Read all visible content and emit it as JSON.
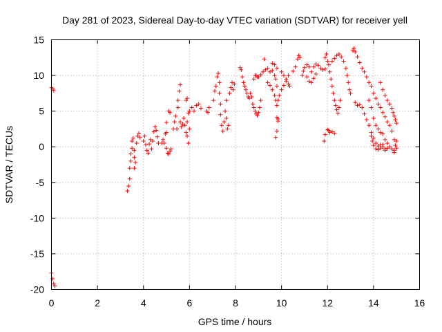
{
  "chart_data": {
    "type": "scatter",
    "title": "Day 281 of 2023, Sidereal Day-to-day VTEC variation (SDTVAR) for receiver yell",
    "xlabel": "GPS time / hours",
    "ylabel": "SDTVAR / TECUs",
    "xlim": [
      0,
      16
    ],
    "ylim": [
      -20,
      15
    ],
    "xticks": [
      0,
      2,
      4,
      6,
      8,
      10,
      12,
      14,
      16
    ],
    "yticks": [
      -20,
      -15,
      -10,
      -5,
      0,
      5,
      10,
      15
    ],
    "xtick_labels": [
      "0",
      "2",
      "4",
      "6",
      "8",
      "10",
      "12",
      "14",
      "16"
    ],
    "ytick_labels": [
      "-20",
      "-15",
      "-10",
      "-5",
      "0",
      "5",
      "10",
      "15"
    ],
    "grid": true,
    "marker": "+",
    "color": "#ff0000",
    "series": [
      {
        "name": "SDTVAR",
        "points": [
          [
            0.0,
            8.3
          ],
          [
            0.05,
            8.1
          ],
          [
            0.1,
            7.9
          ],
          [
            0.0,
            -17.7
          ],
          [
            0.05,
            -18.5
          ],
          [
            0.1,
            -19.2
          ],
          [
            0.15,
            -19.5
          ],
          [
            3.3,
            -6.2
          ],
          [
            3.35,
            -5.5
          ],
          [
            3.4,
            -4.5
          ],
          [
            3.4,
            -3.0
          ],
          [
            3.45,
            -2.0
          ],
          [
            3.45,
            -1.0
          ],
          [
            3.5,
            -0.2
          ],
          [
            3.5,
            0.8
          ],
          [
            3.55,
            1.2
          ],
          [
            3.6,
            -0.5
          ],
          [
            3.6,
            -1.5
          ],
          [
            3.6,
            -3.0
          ],
          [
            3.65,
            -2.2
          ],
          [
            3.7,
            0.5
          ],
          [
            3.75,
            1.5
          ],
          [
            3.8,
            1.9
          ],
          [
            3.85,
            1.3
          ],
          [
            4.0,
            0.8
          ],
          [
            4.05,
            1.5
          ],
          [
            4.1,
            0.3
          ],
          [
            4.15,
            -0.5
          ],
          [
            4.2,
            -0.9
          ],
          [
            4.25,
            0.4
          ],
          [
            4.3,
            1.0
          ],
          [
            4.35,
            -0.3
          ],
          [
            4.4,
            0.8
          ],
          [
            4.45,
            2.1
          ],
          [
            4.5,
            2.8
          ],
          [
            4.55,
            2.3
          ],
          [
            4.6,
            1.4
          ],
          [
            4.65,
            0.5
          ],
          [
            4.8,
            0.5
          ],
          [
            4.85,
            1.0
          ],
          [
            4.9,
            0.5
          ],
          [
            4.95,
            1.8
          ],
          [
            5.0,
            2.0
          ],
          [
            5.0,
            -0.2
          ],
          [
            5.05,
            -0.9
          ],
          [
            5.1,
            -1.0
          ],
          [
            5.15,
            -0.6
          ],
          [
            5.2,
            -0.3
          ],
          [
            5.0,
            3.4
          ],
          [
            5.1,
            5.0
          ],
          [
            5.15,
            4.8
          ],
          [
            5.3,
            2.5
          ],
          [
            5.35,
            3.5
          ],
          [
            5.4,
            4.3
          ],
          [
            5.45,
            2.5
          ],
          [
            5.5,
            5.5
          ],
          [
            5.5,
            6.5
          ],
          [
            5.55,
            7.8
          ],
          [
            5.6,
            8.7
          ],
          [
            5.6,
            3.5
          ],
          [
            5.65,
            2.8
          ],
          [
            5.7,
            3.2
          ],
          [
            5.75,
            4.0
          ],
          [
            5.8,
            3.0
          ],
          [
            5.85,
            2.0
          ],
          [
            5.9,
            3.5
          ],
          [
            5.95,
            4.7
          ],
          [
            6.0,
            2.5
          ],
          [
            5.95,
            0.5
          ],
          [
            5.9,
            1.5
          ],
          [
            5.85,
            6.5
          ],
          [
            5.9,
            6.8
          ],
          [
            6.0,
            5.0
          ],
          [
            6.1,
            5.5
          ],
          [
            6.2,
            5.0
          ],
          [
            6.3,
            5.8
          ],
          [
            6.4,
            6.0
          ],
          [
            6.5,
            5.4
          ],
          [
            6.75,
            5.0
          ],
          [
            6.8,
            4.8
          ],
          [
            6.85,
            5.5
          ],
          [
            7.05,
            6.5
          ],
          [
            7.1,
            7.8
          ],
          [
            7.15,
            8.5
          ],
          [
            7.2,
            9.8
          ],
          [
            7.25,
            10.3
          ],
          [
            7.3,
            9.0
          ],
          [
            7.3,
            7.5
          ],
          [
            7.35,
            6.0
          ],
          [
            7.35,
            4.5
          ],
          [
            7.4,
            3.0
          ],
          [
            7.45,
            2.2
          ],
          [
            7.5,
            3.5
          ],
          [
            7.55,
            5.0
          ],
          [
            7.6,
            6.5
          ],
          [
            7.6,
            4.0
          ],
          [
            7.65,
            2.5
          ],
          [
            7.7,
            3.0
          ],
          [
            7.75,
            7.5
          ],
          [
            7.8,
            8.3
          ],
          [
            7.85,
            9.0
          ],
          [
            7.9,
            8.0
          ],
          [
            7.95,
            8.8
          ],
          [
            8.2,
            11.1
          ],
          [
            8.25,
            10.8
          ],
          [
            8.3,
            9.8
          ],
          [
            8.35,
            9.0
          ],
          [
            8.4,
            8.5
          ],
          [
            8.45,
            8.0
          ],
          [
            8.5,
            7.5
          ],
          [
            8.55,
            7.0
          ],
          [
            8.6,
            6.8
          ],
          [
            8.65,
            7.5
          ],
          [
            8.7,
            7.0
          ],
          [
            8.75,
            6.0
          ],
          [
            8.8,
            5.5
          ],
          [
            8.85,
            5.0
          ],
          [
            8.9,
            4.6
          ],
          [
            8.95,
            4.4
          ],
          [
            9.0,
            4.8
          ],
          [
            9.05,
            5.5
          ],
          [
            9.1,
            6.5
          ],
          [
            8.8,
            9.5
          ],
          [
            8.85,
            10.0
          ],
          [
            8.9,
            10.0
          ],
          [
            8.95,
            9.8
          ],
          [
            9.0,
            9.8
          ],
          [
            9.1,
            10.1
          ],
          [
            9.2,
            10.5
          ],
          [
            9.25,
            12.3
          ],
          [
            9.3,
            10.8
          ],
          [
            9.4,
            11.0
          ],
          [
            9.5,
            10.5
          ],
          [
            9.6,
            10.7
          ],
          [
            9.7,
            10.0
          ],
          [
            9.75,
            9.5
          ],
          [
            9.8,
            8.5
          ],
          [
            9.4,
            9.0
          ],
          [
            9.5,
            8.6
          ],
          [
            9.6,
            8.0
          ],
          [
            9.7,
            7.2
          ],
          [
            9.75,
            6.5
          ],
          [
            9.8,
            5.8
          ],
          [
            9.85,
            6.5
          ],
          [
            9.9,
            7.2
          ],
          [
            10.0,
            8.0
          ],
          [
            10.1,
            8.6
          ],
          [
            10.2,
            9.2
          ],
          [
            10.3,
            8.8
          ],
          [
            10.35,
            8.5
          ],
          [
            9.8,
            4.1
          ],
          [
            9.85,
            3.6
          ],
          [
            9.8,
            2.2
          ],
          [
            9.75,
            1.3
          ],
          [
            9.85,
            3.9
          ],
          [
            9.6,
            11.7
          ],
          [
            9.7,
            11.5
          ],
          [
            9.8,
            11.0
          ],
          [
            10.0,
            10.5
          ],
          [
            10.1,
            10.0
          ],
          [
            10.2,
            9.5
          ],
          [
            10.3,
            10.0
          ],
          [
            10.5,
            10.6
          ],
          [
            10.6,
            11.2
          ],
          [
            10.7,
            12.3
          ],
          [
            10.75,
            12.8
          ],
          [
            10.8,
            12.5
          ],
          [
            10.9,
            10.0
          ],
          [
            10.95,
            10.6
          ],
          [
            11.0,
            11.1
          ],
          [
            11.1,
            11.5
          ],
          [
            11.2,
            11.2
          ],
          [
            11.3,
            10.5
          ],
          [
            11.4,
            11.2
          ],
          [
            11.5,
            11.6
          ],
          [
            11.6,
            11.4
          ],
          [
            11.7,
            11.0
          ],
          [
            11.8,
            10.8
          ],
          [
            11.9,
            10.9
          ],
          [
            11.1,
            9.8
          ],
          [
            11.2,
            9.2
          ],
          [
            11.3,
            9.0
          ],
          [
            11.4,
            9.6
          ],
          [
            11.5,
            10.2
          ],
          [
            11.9,
            12.5
          ],
          [
            11.95,
            13.0
          ],
          [
            12.0,
            12.0
          ],
          [
            12.05,
            11.5
          ],
          [
            12.1,
            10.5
          ],
          [
            12.15,
            9.5
          ],
          [
            12.2,
            8.5
          ],
          [
            12.25,
            7.5
          ],
          [
            12.3,
            6.5
          ],
          [
            12.35,
            5.8
          ],
          [
            12.4,
            5.2
          ],
          [
            12.45,
            4.7
          ],
          [
            12.5,
            5.5
          ],
          [
            12.55,
            6.5
          ],
          [
            12.2,
            12.0
          ],
          [
            12.3,
            12.4
          ],
          [
            12.4,
            12.8
          ],
          [
            12.5,
            13.0
          ],
          [
            12.6,
            12.6
          ],
          [
            12.7,
            12.0
          ],
          [
            12.8,
            11.0
          ],
          [
            12.85,
            10.0
          ],
          [
            12.9,
            9.0
          ],
          [
            12.95,
            8.0
          ],
          [
            13.0,
            7.5
          ],
          [
            11.9,
            1.7
          ],
          [
            12.0,
            2.4
          ],
          [
            12.05,
            2.3
          ],
          [
            12.1,
            2.0
          ],
          [
            12.2,
            2.1
          ],
          [
            12.3,
            1.9
          ],
          [
            11.85,
            0.8
          ],
          [
            13.1,
            13.5
          ],
          [
            13.15,
            13.8
          ],
          [
            13.2,
            13.3
          ],
          [
            13.3,
            12.6
          ],
          [
            13.4,
            11.8
          ],
          [
            13.5,
            11.0
          ],
          [
            13.6,
            10.5
          ],
          [
            13.7,
            9.8
          ],
          [
            13.8,
            9.0
          ],
          [
            13.9,
            8.5
          ],
          [
            14.0,
            7.5
          ],
          [
            14.1,
            6.8
          ],
          [
            14.2,
            6.0
          ],
          [
            14.3,
            5.5
          ],
          [
            14.4,
            4.8
          ],
          [
            14.5,
            4.2
          ],
          [
            14.6,
            3.5
          ],
          [
            14.7,
            3.0
          ],
          [
            14.8,
            2.2
          ],
          [
            14.9,
            1.0
          ],
          [
            15.0,
            0.8
          ],
          [
            13.2,
            6.2
          ],
          [
            13.3,
            5.8
          ],
          [
            13.4,
            5.9
          ],
          [
            13.5,
            5.5
          ],
          [
            13.6,
            4.6
          ],
          [
            13.7,
            3.8
          ],
          [
            13.8,
            3.0
          ],
          [
            13.9,
            2.0
          ],
          [
            14.0,
            1.2
          ],
          [
            14.1,
            0.5
          ],
          [
            14.2,
            0.1
          ],
          [
            14.3,
            0.3
          ],
          [
            14.4,
            0.0
          ],
          [
            14.5,
            -0.3
          ],
          [
            13.8,
            6.5
          ],
          [
            13.9,
            5.5
          ],
          [
            14.0,
            4.0
          ],
          [
            14.1,
            3.0
          ],
          [
            14.2,
            2.5
          ],
          [
            14.3,
            2.0
          ],
          [
            14.4,
            1.8
          ],
          [
            14.5,
            1.0
          ],
          [
            14.6,
            0.5
          ],
          [
            14.7,
            0.0
          ],
          [
            14.8,
            -0.3
          ],
          [
            14.9,
            -0.5
          ],
          [
            15.0,
            -0.2
          ],
          [
            13.9,
            1.5
          ],
          [
            13.95,
            0.8
          ],
          [
            14.0,
            0.2
          ],
          [
            14.1,
            -0.3
          ],
          [
            14.2,
            -0.4
          ],
          [
            14.3,
            -0.2
          ],
          [
            14.4,
            0.3
          ],
          [
            14.5,
            -0.5
          ],
          [
            14.6,
            -0.2
          ],
          [
            14.3,
            9.0
          ],
          [
            14.4,
            8.0
          ],
          [
            14.5,
            7.2
          ],
          [
            14.6,
            6.5
          ],
          [
            14.7,
            6.0
          ],
          [
            14.8,
            5.4
          ],
          [
            14.85,
            4.8
          ],
          [
            14.9,
            4.3
          ],
          [
            14.95,
            3.8
          ],
          [
            15.0,
            3.3
          ],
          [
            14.95,
            0.2
          ],
          [
            14.9,
            -0.8
          ]
        ]
      }
    ]
  }
}
